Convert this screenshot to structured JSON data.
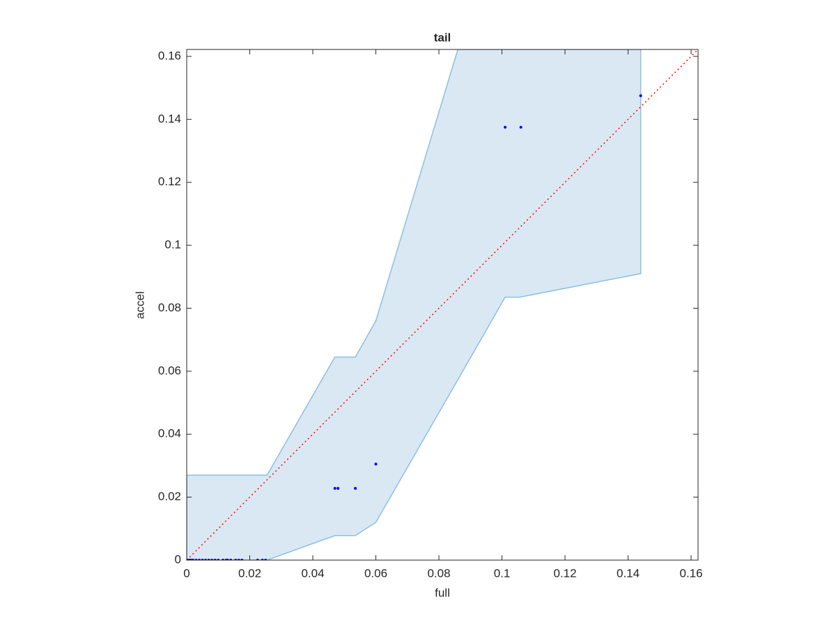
{
  "chart_data": {
    "type": "scatter",
    "title": "tail",
    "xlabel": "full",
    "ylabel": "accel",
    "xlim": [
      0,
      0.1622
    ],
    "ylim": [
      0,
      0.1622
    ],
    "xticks": [
      0,
      0.02,
      0.04,
      0.06,
      0.08,
      0.1,
      0.12,
      0.14,
      0.16
    ],
    "yticks": [
      0,
      0.02,
      0.04,
      0.06,
      0.08,
      0.1,
      0.12,
      0.14,
      0.16
    ],
    "band": {
      "x": [
        0,
        0.0255,
        0.047,
        0.0535,
        0.06,
        0.086,
        0.101,
        0.1055,
        0.144
      ],
      "upper": [
        0.027,
        0.027,
        0.0645,
        0.0645,
        0.076,
        0.1622,
        0.1622,
        0.1622,
        0.1622
      ],
      "lower": [
        0,
        0,
        0.0078,
        0.0078,
        0.012,
        0.0573,
        0.0835,
        0.0835,
        0.091
      ],
      "color": "#dae8f4",
      "edge_color": "#8bbfe0"
    },
    "diagonal": {
      "x": [
        0,
        0.1622
      ],
      "y": [
        0,
        0.1622
      ],
      "color": "#ff0000"
    },
    "series": [
      {
        "color": "#0000ff",
        "x": [
          0,
          0.0005,
          0.001,
          0.0015,
          0.002,
          0.003,
          0.004,
          0.005,
          0.006,
          0.007,
          0.008,
          0.009,
          0.01,
          0.0115,
          0.0125,
          0.013,
          0.014,
          0.0155,
          0.0165,
          0.0175,
          0.0225,
          0.024,
          0.025,
          0.047,
          0.048,
          0.0535,
          0.06,
          0.101,
          0.106,
          0.144
        ],
        "values": [
          0,
          0,
          0,
          0,
          0,
          0,
          0,
          0,
          0,
          0,
          0,
          0,
          0,
          0,
          0,
          0,
          0,
          0,
          0,
          0,
          0,
          0,
          0,
          0.0228,
          0.0228,
          0.0228,
          0.0305,
          0.1375,
          0.1375,
          0.1475
        ]
      }
    ]
  }
}
